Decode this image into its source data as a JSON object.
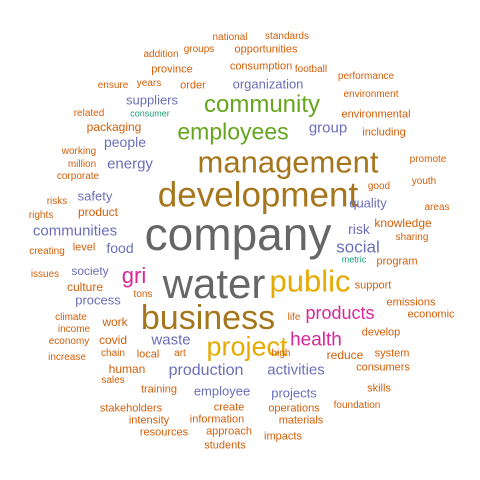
{
  "words": {
    "company": {
      "text": "company",
      "color": "#666666"
    },
    "water": {
      "text": "water",
      "color": "#666666"
    },
    "development": {
      "text": "development",
      "color": "#a6761d"
    },
    "management": {
      "text": "management",
      "color": "#a6761d"
    },
    "business": {
      "text": "business",
      "color": "#a6761d"
    },
    "public": {
      "text": "public",
      "color": "#e6ab02"
    },
    "project": {
      "text": "project",
      "color": "#e6ab02"
    },
    "community": {
      "text": "community",
      "color": "#66a61e"
    },
    "employees": {
      "text": "employees",
      "color": "#66a61e"
    },
    "gri": {
      "text": "gri",
      "color": "#d9279a"
    },
    "health": {
      "text": "health",
      "color": "#d9279a"
    },
    "products": {
      "text": "products",
      "color": "#d9279a"
    },
    "social": {
      "text": "social",
      "color": "#6a6fb8"
    },
    "production": {
      "text": "production",
      "color": "#6a6fb8"
    },
    "energy": {
      "text": "energy",
      "color": "#6a6fb8"
    },
    "communities": {
      "text": "communities",
      "color": "#6a6fb8"
    },
    "activities": {
      "text": "activities",
      "color": "#6a6fb8"
    },
    "waste": {
      "text": "waste",
      "color": "#6a6fb8"
    },
    "group": {
      "text": "group",
      "color": "#6a6fb8"
    },
    "people": {
      "text": "people",
      "color": "#6a6fb8"
    },
    "food": {
      "text": "food",
      "color": "#6a6fb8"
    },
    "risk": {
      "text": "risk",
      "color": "#6a6fb8"
    },
    "quality": {
      "text": "quality",
      "color": "#6a6fb8"
    },
    "safety": {
      "text": "safety",
      "color": "#6a6fb8"
    },
    "process": {
      "text": "process",
      "color": "#6a6fb8"
    },
    "employee": {
      "text": "employee",
      "color": "#6a6fb8"
    },
    "projects": {
      "text": "projects",
      "color": "#6a6fb8"
    },
    "suppliers": {
      "text": "suppliers",
      "color": "#6a6fb8"
    },
    "organization": {
      "text": "organization",
      "color": "#6a6fb8"
    },
    "society": {
      "text": "society",
      "color": "#6a6fb8"
    },
    "culture": {
      "text": "culture",
      "color": "#d35f0a"
    },
    "product": {
      "text": "product",
      "color": "#d35f0a"
    },
    "packaging": {
      "text": "packaging",
      "color": "#d35f0a"
    },
    "knowledge": {
      "text": "knowledge",
      "color": "#d35f0a"
    },
    "human": {
      "text": "human",
      "color": "#d35f0a"
    },
    "covid": {
      "text": "covid",
      "color": "#d35f0a"
    },
    "work": {
      "text": "work",
      "color": "#d35f0a"
    },
    "reduce": {
      "text": "reduce",
      "color": "#d35f0a"
    },
    "environmental": {
      "text": "environmental",
      "color": "#d35f0a"
    },
    "including": {
      "text": "including",
      "color": "#d35f0a"
    },
    "consumption": {
      "text": "consumption",
      "color": "#d35f0a"
    },
    "opportunities": {
      "text": "opportunities",
      "color": "#d35f0a"
    },
    "province": {
      "text": "province",
      "color": "#d35f0a"
    },
    "order": {
      "text": "order",
      "color": "#d35f0a"
    },
    "level": {
      "text": "level",
      "color": "#d35f0a"
    },
    "training": {
      "text": "training",
      "color": "#d35f0a"
    },
    "create": {
      "text": "create",
      "color": "#d35f0a"
    },
    "information": {
      "text": "information",
      "color": "#d35f0a"
    },
    "operations": {
      "text": "operations",
      "color": "#d35f0a"
    },
    "program": {
      "text": "program",
      "color": "#d35f0a"
    },
    "support": {
      "text": "support",
      "color": "#d35f0a"
    },
    "develop": {
      "text": "develop",
      "color": "#d35f0a"
    },
    "system": {
      "text": "system",
      "color": "#d35f0a"
    },
    "emissions": {
      "text": "emissions",
      "color": "#d35f0a"
    },
    "economic": {
      "text": "economic",
      "color": "#d35f0a"
    },
    "local": {
      "text": "local",
      "color": "#d35f0a"
    },
    "materials": {
      "text": "materials",
      "color": "#d35f0a"
    },
    "impacts": {
      "text": "impacts",
      "color": "#d35f0a"
    },
    "approach": {
      "text": "approach",
      "color": "#d35f0a"
    },
    "students": {
      "text": "students",
      "color": "#d35f0a"
    },
    "stakeholders": {
      "text": "stakeholders",
      "color": "#d35f0a"
    },
    "intensity": {
      "text": "intensity",
      "color": "#d35f0a"
    },
    "resources": {
      "text": "resources",
      "color": "#d35f0a"
    },
    "consumers": {
      "text": "consumers",
      "color": "#d35f0a"
    },
    "skills": {
      "text": "skills",
      "color": "#d35f0a"
    },
    "foundation": {
      "text": "foundation",
      "color": "#d35f0a"
    },
    "sales": {
      "text": "sales",
      "color": "#d35f0a"
    },
    "chain": {
      "text": "chain",
      "color": "#d35f0a"
    },
    "art": {
      "text": "art",
      "color": "#d35f0a"
    },
    "high": {
      "text": "high",
      "color": "#d35f0a"
    },
    "life": {
      "text": "life",
      "color": "#d35f0a"
    },
    "tons": {
      "text": "tons",
      "color": "#d35f0a"
    },
    "issues": {
      "text": "issues",
      "color": "#d35f0a"
    },
    "creating": {
      "text": "creating",
      "color": "#d35f0a"
    },
    "rights": {
      "text": "rights",
      "color": "#d35f0a"
    },
    "risks": {
      "text": "risks",
      "color": "#d35f0a"
    },
    "corporate": {
      "text": "corporate",
      "color": "#d35f0a"
    },
    "million": {
      "text": "million",
      "color": "#d35f0a"
    },
    "working": {
      "text": "working",
      "color": "#d35f0a"
    },
    "related": {
      "text": "related",
      "color": "#d35f0a"
    },
    "ensure": {
      "text": "ensure",
      "color": "#d35f0a"
    },
    "years": {
      "text": "years",
      "color": "#d35f0a"
    },
    "addition": {
      "text": "addition",
      "color": "#d35f0a"
    },
    "groups": {
      "text": "groups",
      "color": "#d35f0a"
    },
    "national": {
      "text": "national",
      "color": "#d35f0a"
    },
    "standards": {
      "text": "standards",
      "color": "#d35f0a"
    },
    "football": {
      "text": "football",
      "color": "#d35f0a"
    },
    "performance": {
      "text": "performance",
      "color": "#d35f0a"
    },
    "environment": {
      "text": "environment",
      "color": "#d35f0a"
    },
    "promote": {
      "text": "promote",
      "color": "#d35f0a"
    },
    "good": {
      "text": "good",
      "color": "#d35f0a"
    },
    "youth": {
      "text": "youth",
      "color": "#d35f0a"
    },
    "areas": {
      "text": "areas",
      "color": "#d35f0a"
    },
    "sharing": {
      "text": "sharing",
      "color": "#d35f0a"
    },
    "climate": {
      "text": "climate",
      "color": "#d35f0a"
    },
    "income": {
      "text": "income",
      "color": "#d35f0a"
    },
    "economy": {
      "text": "economy",
      "color": "#d35f0a"
    },
    "increase": {
      "text": "increase",
      "color": "#d35f0a"
    },
    "consumer": {
      "text": "consumer",
      "color": "#1b9e77"
    },
    "metric": {
      "text": "metric",
      "color": "#1b9e77"
    }
  }
}
